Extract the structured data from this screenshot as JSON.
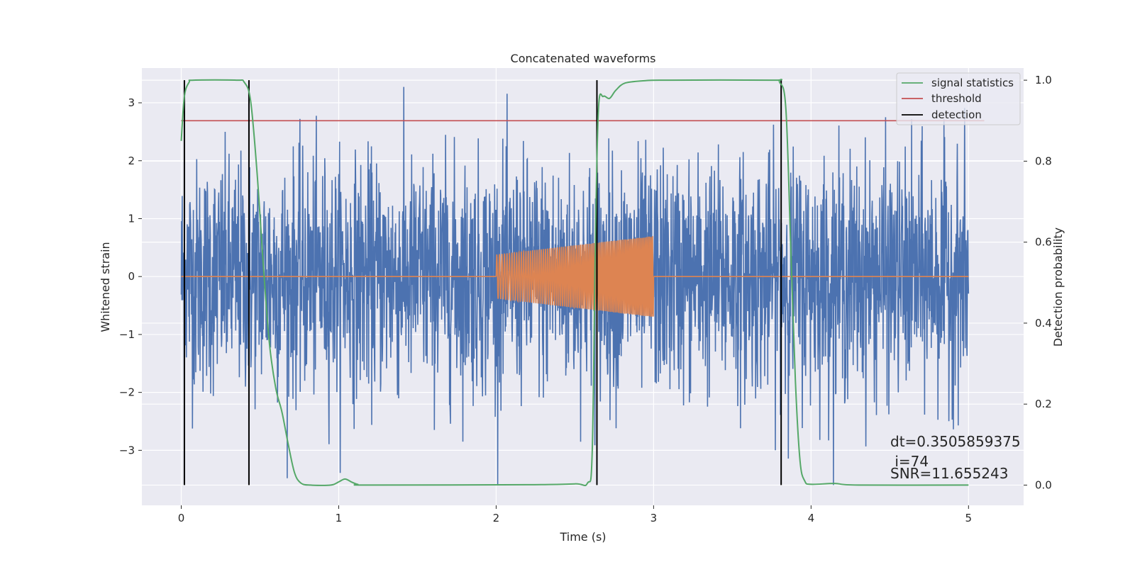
{
  "chart_data": {
    "type": "line",
    "title": "Concatenated waveforms",
    "xlabel": "Time (s)",
    "ylabel": "Whitened strain",
    "y2label": "Detection probability",
    "xlim": [
      -0.25,
      5.35
    ],
    "ylim": [
      -3.95,
      3.6
    ],
    "y2lim": [
      -0.05,
      1.03
    ],
    "xticks": [
      0,
      1,
      2,
      3,
      4,
      5
    ],
    "yticks": [
      -3,
      -2,
      -1,
      0,
      1,
      2,
      3
    ],
    "y2ticks": [
      0.0,
      0.2,
      0.4,
      0.6,
      0.8,
      1.0
    ],
    "xtick_labels": [
      "0",
      "1",
      "2",
      "3",
      "4",
      "5"
    ],
    "ytick_labels": [
      "−3",
      "−2",
      "−1",
      "0",
      "1",
      "2",
      "3"
    ],
    "y2tick_labels": [
      "0.0",
      "0.2",
      "0.4",
      "0.6",
      "0.8",
      "1.0"
    ],
    "grid": true,
    "background": "#EAEAF2",
    "legend_position": "top-right",
    "noise": {
      "color": "#4C72B0",
      "t_start": 0,
      "t_end": 5,
      "typical_amplitude": 1.0,
      "max_amplitude": 3.6
    },
    "injection": {
      "color": "#DD8452",
      "t_start": 2.0,
      "t_end": 3.0,
      "amp_start": 0.38,
      "amp_end": 0.7
    },
    "signal_statistics": {
      "name": "signal statistics",
      "color": "#55A868",
      "axis": "right",
      "points": [
        [
          0.0,
          0.85
        ],
        [
          0.02,
          0.96
        ],
        [
          0.05,
          0.995
        ],
        [
          0.08,
          1.0
        ],
        [
          0.35,
          1.0
        ],
        [
          0.4,
          0.995
        ],
        [
          0.44,
          0.95
        ],
        [
          0.48,
          0.78
        ],
        [
          0.52,
          0.55
        ],
        [
          0.56,
          0.35
        ],
        [
          0.6,
          0.24
        ],
        [
          0.64,
          0.18
        ],
        [
          0.68,
          0.1
        ],
        [
          0.72,
          0.03
        ],
        [
          0.76,
          0.005
        ],
        [
          0.82,
          0.0
        ],
        [
          0.95,
          0.0
        ],
        [
          1.0,
          0.008
        ],
        [
          1.04,
          0.015
        ],
        [
          1.08,
          0.008
        ],
        [
          1.12,
          0.002
        ],
        [
          1.2,
          0.0
        ],
        [
          2.2,
          0.001
        ],
        [
          2.5,
          0.003
        ],
        [
          2.58,
          0.005
        ],
        [
          2.61,
          0.08
        ],
        [
          2.63,
          0.6
        ],
        [
          2.65,
          0.93
        ],
        [
          2.68,
          0.96
        ],
        [
          2.72,
          0.955
        ],
        [
          2.76,
          0.975
        ],
        [
          2.82,
          0.993
        ],
        [
          2.95,
          0.999
        ],
        [
          3.1,
          1.0
        ],
        [
          3.75,
          1.0
        ],
        [
          3.8,
          0.995
        ],
        [
          3.84,
          0.93
        ],
        [
          3.87,
          0.6
        ],
        [
          3.9,
          0.26
        ],
        [
          3.93,
          0.06
        ],
        [
          3.96,
          0.01
        ],
        [
          4.0,
          0.002
        ],
        [
          4.15,
          0.004
        ],
        [
          4.3,
          0.0
        ],
        [
          5.0,
          0.0
        ]
      ]
    },
    "threshold": {
      "name": "threshold",
      "color": "#C44E52",
      "axis": "right",
      "value": 0.9,
      "x_start": 0.0,
      "x_end": 5.1
    },
    "detection": {
      "name": "detection",
      "color": "#000000",
      "times": [
        0.02,
        0.43,
        2.64,
        3.81
      ],
      "y_bottom": 0.0,
      "y_top": 1.0
    },
    "annotations": [
      "dt=0.3505859375",
      " i=74",
      "SNR=11.655243"
    ]
  }
}
